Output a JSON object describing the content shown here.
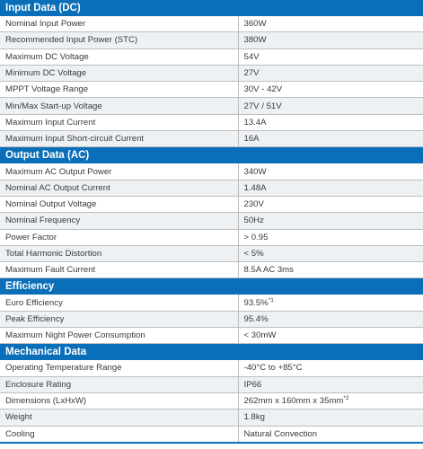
{
  "sections": [
    {
      "title": "Input Data (DC)",
      "rows": [
        {
          "label": "Nominal Input Power",
          "value": "360W"
        },
        {
          "label": "Recommended Input Power (STC)",
          "value": "380W"
        },
        {
          "label": "Maximum DC Voltage",
          "value": "54V"
        },
        {
          "label": "Minimum DC Voltage",
          "value": "27V"
        },
        {
          "label": "MPPT Voltage Range",
          "value": "30V - 42V"
        },
        {
          "label": "Min/Max Start-up Voltage",
          "value": "27V / 51V"
        },
        {
          "label": "Maximum Input Current",
          "value": "13.4A"
        },
        {
          "label": "Maximum Input Short-circuit Current",
          "value": "16A"
        }
      ]
    },
    {
      "title": "Output Data (AC)",
      "rows": [
        {
          "label": "Maximum AC Output Power",
          "value": "340W"
        },
        {
          "label": "Nominal AC Output Current",
          "value": "1.48A"
        },
        {
          "label": "Nominal Output Voltage",
          "value": "230V"
        },
        {
          "label": "Nominal Frequency",
          "value": "50Hz"
        },
        {
          "label": "Power Factor",
          "value": "> 0.95"
        },
        {
          "label": "Total Harmonic Distortion",
          "value": "< 5%"
        },
        {
          "label": "Maximum Fault Current",
          "value": "8.5A AC 3ms"
        }
      ]
    },
    {
      "title": "Efficiency",
      "rows": [
        {
          "label": "Euro Efficiency",
          "value": "93.5%",
          "note": "*1"
        },
        {
          "label": "Peak Efficiency",
          "value": "95.4%"
        },
        {
          "label": "Maximum Night Power Consumption",
          "value": "< 30mW"
        }
      ]
    },
    {
      "title": "Mechanical Data",
      "rows": [
        {
          "label": "Operating Temperature Range",
          "value": "-40°C to +85°C"
        },
        {
          "label": "Enclosure Rating",
          "value": "IP66"
        },
        {
          "label": "Dimensions (LxHxW)",
          "value": "262mm x 160mm x 35mm",
          "note": "*2"
        },
        {
          "label": "Weight",
          "value": "1.8kg"
        },
        {
          "label": "Cooling",
          "value": "Natural Convection"
        }
      ]
    }
  ]
}
